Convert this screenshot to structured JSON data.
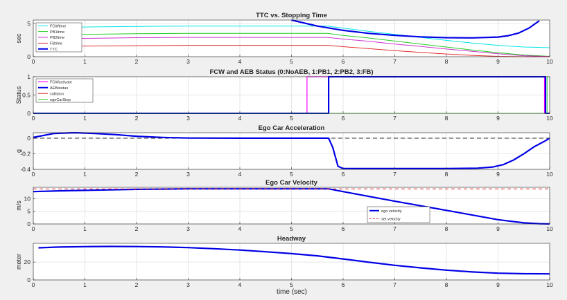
{
  "figure": {
    "xlabel": "time (sec)"
  },
  "chart_data": [
    {
      "type": "line",
      "title": "TTC vs. Stopping Time",
      "ylabel": "sec",
      "xlim": [
        0,
        10
      ],
      "ylim": [
        0,
        5.5
      ],
      "x_ticks": [
        0,
        1,
        2,
        3,
        4,
        5,
        6,
        7,
        8,
        9,
        10
      ],
      "y_ticks": [
        0,
        5
      ],
      "grid": true,
      "legend_position": "top-left",
      "series": [
        {
          "name": "FCWtime",
          "color": "#00e5e5",
          "width": 1,
          "x": [
            0.1,
            1,
            2,
            3,
            4,
            5,
            5.7,
            6,
            6.5,
            7,
            7.5,
            8,
            8.5,
            9,
            9.5,
            10
          ],
          "y": [
            4.3,
            4.45,
            4.55,
            4.6,
            4.6,
            4.6,
            4.6,
            4.3,
            3.8,
            3.35,
            2.9,
            2.45,
            2.05,
            1.7,
            1.45,
            1.35
          ]
        },
        {
          "name": "PB1time",
          "color": "#22cc22",
          "width": 1,
          "x": [
            0.1,
            1,
            2,
            3,
            4,
            5,
            5.7,
            6,
            6.5,
            7,
            7.5,
            8,
            8.5,
            9,
            9.5,
            10
          ],
          "y": [
            3.2,
            3.35,
            3.45,
            3.5,
            3.5,
            3.5,
            3.5,
            3.2,
            2.8,
            2.35,
            1.9,
            1.45,
            1.0,
            0.6,
            0.25,
            0.05
          ]
        },
        {
          "name": "PB2time",
          "color": "#cc33cc",
          "width": 1,
          "x": [
            0.1,
            1,
            2,
            3,
            4,
            5,
            5.7,
            6,
            6.5,
            7,
            7.5,
            8,
            8.5,
            9,
            9.5,
            10
          ],
          "y": [
            2.6,
            2.75,
            2.85,
            2.9,
            2.9,
            2.9,
            2.9,
            2.65,
            2.3,
            1.9,
            1.55,
            1.15,
            0.8,
            0.45,
            0.15,
            0.02
          ]
        },
        {
          "name": "FBtime",
          "color": "#e03030",
          "width": 1,
          "x": [
            0.1,
            1,
            2,
            3,
            4,
            5,
            5.7,
            6,
            6.5,
            7,
            7.5,
            8,
            8.5,
            9,
            9.5,
            10
          ],
          "y": [
            1.5,
            1.6,
            1.65,
            1.7,
            1.7,
            1.7,
            1.7,
            1.5,
            1.2,
            0.9,
            0.65,
            0.4,
            0.2,
            0.05,
            0.0,
            0.0
          ]
        },
        {
          "name": "TTC",
          "color": "#0000e6",
          "width": 2.2,
          "x": [
            5.0,
            5.5,
            6,
            6.5,
            7,
            7.5,
            8,
            8.5,
            9,
            9.2,
            9.4,
            9.6,
            9.8
          ],
          "y": [
            5.5,
            4.6,
            3.95,
            3.5,
            3.2,
            2.98,
            2.85,
            2.82,
            2.95,
            3.15,
            3.55,
            4.3,
            5.4
          ]
        }
      ]
    },
    {
      "type": "line",
      "title": "FCW and AEB Status (0:NoAEB, 1:PB1, 2:PB2, 3:FB)",
      "ylabel": "Status",
      "xlim": [
        0,
        10
      ],
      "ylim": [
        0,
        1
      ],
      "x_ticks": [
        0,
        1,
        2,
        3,
        4,
        5,
        6,
        7,
        8,
        9,
        10
      ],
      "y_ticks": [
        0,
        0.5,
        1
      ],
      "grid": true,
      "legend_position": "top-left",
      "series": [
        {
          "name": "FCWactivate",
          "color": "#ff00ff",
          "width": 1.2,
          "x": [
            0,
            5.3,
            5.3,
            9.9,
            9.9,
            10
          ],
          "y": [
            0,
            0,
            1,
            1,
            0,
            0
          ]
        },
        {
          "name": "AEBstatus",
          "color": "#0000e6",
          "width": 2.2,
          "x": [
            0,
            5.72,
            5.72,
            9.92,
            9.92,
            10
          ],
          "y": [
            0,
            0,
            1,
            1,
            0,
            0
          ]
        },
        {
          "name": "collision",
          "color": "#e03030",
          "width": 1,
          "x": [
            0,
            10
          ],
          "y": [
            0,
            0
          ]
        },
        {
          "name": "egoCarStop",
          "color": "#22cc22",
          "width": 1,
          "x": [
            0,
            9.95,
            9.95,
            10
          ],
          "y": [
            0,
            0,
            1,
            1
          ]
        }
      ]
    },
    {
      "type": "line",
      "title": "Ego Car Acceleration",
      "ylabel": "g",
      "xlim": [
        0,
        10
      ],
      "ylim": [
        -0.4,
        0.07
      ],
      "x_ticks": [
        0,
        1,
        2,
        3,
        4,
        5,
        6,
        7,
        8,
        9,
        10
      ],
      "y_ticks": [
        -0.4,
        -0.2,
        0
      ],
      "grid": true,
      "reference_line": {
        "y": 0,
        "color": "#000000",
        "dash": "6,4"
      },
      "series": [
        {
          "name": "",
          "color": "#0000e6",
          "width": 2.2,
          "x": [
            0,
            0.4,
            0.8,
            1.2,
            1.6,
            2.0,
            2.5,
            3,
            4,
            5,
            5.72,
            5.8,
            5.9,
            6.0,
            7,
            8,
            8.6,
            8.9,
            9.1,
            9.3,
            9.5,
            9.7,
            9.9,
            10
          ],
          "y": [
            0.01,
            0.06,
            0.07,
            0.06,
            0.045,
            0.025,
            0.01,
            0.002,
            0.0,
            0.0,
            0.0,
            -0.12,
            -0.36,
            -0.39,
            -0.39,
            -0.39,
            -0.385,
            -0.37,
            -0.34,
            -0.28,
            -0.2,
            -0.11,
            -0.04,
            0.0
          ]
        }
      ]
    },
    {
      "type": "line",
      "title": "Ego Car Velocity",
      "ylabel": "m/s",
      "xlim": [
        0,
        10
      ],
      "ylim": [
        0,
        14.5
      ],
      "x_ticks": [
        0,
        1,
        2,
        3,
        4,
        5,
        6,
        7,
        8,
        9,
        10
      ],
      "y_ticks": [
        0,
        5,
        10
      ],
      "grid": true,
      "legend_position": "bottom-right",
      "series": [
        {
          "name": "ego velocity",
          "color": "#0000e6",
          "width": 2.2,
          "x": [
            0,
            0.5,
            1,
            2,
            3,
            4,
            5,
            5.72,
            6,
            7,
            8,
            9,
            9.5,
            9.8,
            10
          ],
          "y": [
            12.8,
            13.1,
            13.3,
            13.7,
            13.9,
            13.9,
            13.9,
            13.9,
            12.8,
            9.0,
            5.4,
            1.7,
            0.45,
            0.1,
            0.0
          ]
        },
        {
          "name": "set velocity",
          "color": "#e03030",
          "width": 1,
          "dash": "5,4",
          "x": [
            0,
            10
          ],
          "y": [
            13.9,
            13.9
          ]
        }
      ]
    },
    {
      "type": "line",
      "title": "Headway",
      "ylabel": "meter",
      "xlim": [
        0,
        10
      ],
      "ylim": [
        0,
        41
      ],
      "x_ticks": [
        0,
        1,
        2,
        3,
        4,
        5,
        6,
        7,
        8,
        9,
        10
      ],
      "y_ticks": [
        0,
        20
      ],
      "grid": true,
      "series": [
        {
          "name": "",
          "color": "#0000e6",
          "width": 2.2,
          "x": [
            0.1,
            0.5,
            1,
            1.5,
            2,
            2.5,
            3,
            3.5,
            4,
            4.5,
            5,
            5.5,
            6,
            6.5,
            7,
            7.5,
            8,
            8.5,
            9,
            9.5,
            10
          ],
          "y": [
            36,
            36.8,
            37.3,
            37.5,
            37.4,
            37.0,
            36.2,
            35.0,
            33.5,
            31.6,
            29.5,
            27.0,
            23.5,
            19.8,
            16.4,
            13.5,
            11.0,
            9.0,
            7.6,
            7.0,
            6.8
          ]
        }
      ]
    }
  ]
}
